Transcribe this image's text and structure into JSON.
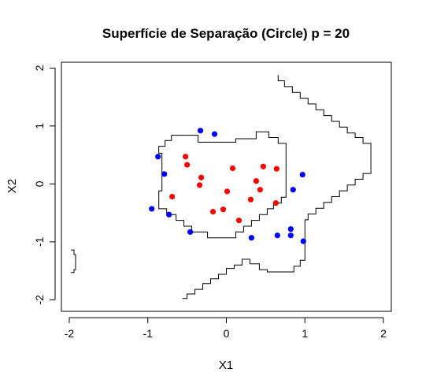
{
  "chart_data": {
    "type": "scatter",
    "title": "Superfície de Separação (Circle) p = 20",
    "xlabel": "X1",
    "ylabel": "X2",
    "xlim": [
      -2.1,
      2.1
    ],
    "ylim": [
      -2.2,
      2.1
    ],
    "xticks": [
      -2,
      -1,
      0,
      1,
      2
    ],
    "yticks": [
      -2,
      -1,
      0,
      1,
      2
    ],
    "tick_labels_x": [
      "-2",
      "-1",
      "0",
      "1",
      "2"
    ],
    "tick_labels_y": [
      "-2",
      "-1",
      "0",
      "1",
      "2"
    ],
    "grid": false,
    "colors": {
      "class_a": "#ff0000",
      "class_b": "#0000ff",
      "boundary": "#000000"
    },
    "series": [
      {
        "color": "#ff0000",
        "points": [
          [
            -0.52,
            0.47
          ],
          [
            -0.5,
            0.33
          ],
          [
            -0.32,
            0.11
          ],
          [
            -0.34,
            -0.02
          ],
          [
            -0.69,
            -0.22
          ],
          [
            0.08,
            0.27
          ],
          [
            0.01,
            -0.13
          ],
          [
            0.47,
            0.3
          ],
          [
            0.64,
            0.26
          ],
          [
            0.38,
            0.05
          ],
          [
            0.43,
            -0.1
          ],
          [
            0.31,
            -0.27
          ],
          [
            -0.17,
            -0.48
          ],
          [
            -0.04,
            -0.44
          ],
          [
            0.16,
            -0.63
          ],
          [
            0.63,
            -0.33
          ]
        ]
      },
      {
        "color": "#0000ff",
        "points": [
          [
            -0.33,
            0.92
          ],
          [
            -0.15,
            0.86
          ],
          [
            -0.87,
            0.47
          ],
          [
            -0.79,
            0.17
          ],
          [
            -0.95,
            -0.43
          ],
          [
            -0.73,
            -0.53
          ],
          [
            -0.46,
            -0.83
          ],
          [
            0.32,
            -0.93
          ],
          [
            0.85,
            -0.1
          ],
          [
            0.97,
            0.16
          ],
          [
            0.82,
            -0.78
          ],
          [
            0.82,
            -0.89
          ],
          [
            0.65,
            -0.89
          ],
          [
            0.98,
            -0.99
          ]
        ]
      }
    ],
    "boundary_lines": [
      [
        [
          0.66,
          1.88
        ],
        [
          0.66,
          1.78
        ],
        [
          0.74,
          1.78
        ],
        [
          0.74,
          1.68
        ],
        [
          0.84,
          1.68
        ],
        [
          0.84,
          1.58
        ],
        [
          0.94,
          1.58
        ],
        [
          0.94,
          1.48
        ],
        [
          1.04,
          1.48
        ],
        [
          1.04,
          1.38
        ],
        [
          1.14,
          1.38
        ],
        [
          1.14,
          1.28
        ],
        [
          1.24,
          1.28
        ],
        [
          1.24,
          1.18
        ],
        [
          1.34,
          1.18
        ],
        [
          1.34,
          1.08
        ],
        [
          1.44,
          1.08
        ],
        [
          1.44,
          0.98
        ],
        [
          1.54,
          0.98
        ],
        [
          1.54,
          0.88
        ],
        [
          1.64,
          0.88
        ],
        [
          1.64,
          0.8
        ],
        [
          1.74,
          0.8
        ],
        [
          1.74,
          0.7
        ],
        [
          1.84,
          0.7
        ],
        [
          1.84,
          0.18
        ],
        [
          1.74,
          0.18
        ],
        [
          1.74,
          0.08
        ],
        [
          1.64,
          0.08
        ],
        [
          1.64,
          -0.02
        ],
        [
          1.54,
          -0.02
        ],
        [
          1.54,
          -0.12
        ],
        [
          1.44,
          -0.12
        ],
        [
          1.44,
          -0.22
        ],
        [
          1.34,
          -0.22
        ],
        [
          1.34,
          -0.32
        ],
        [
          1.24,
          -0.32
        ],
        [
          1.24,
          -0.42
        ],
        [
          1.14,
          -0.42
        ],
        [
          1.14,
          -0.52
        ],
        [
          1.04,
          -0.52
        ],
        [
          1.04,
          -0.62
        ],
        [
          1.0,
          -0.62
        ],
        [
          1.0,
          -1.32
        ],
        [
          0.94,
          -1.32
        ],
        [
          0.94,
          -1.42
        ],
        [
          0.86,
          -1.42
        ],
        [
          0.86,
          -1.52
        ],
        [
          0.52,
          -1.52
        ],
        [
          0.52,
          -1.48
        ],
        [
          0.42,
          -1.48
        ],
        [
          0.42,
          -1.38
        ],
        [
          0.3,
          -1.38
        ],
        [
          0.3,
          -1.3
        ],
        [
          0.2,
          -1.3
        ],
        [
          0.2,
          -1.4
        ],
        [
          0.1,
          -1.4
        ],
        [
          0.1,
          -1.46
        ],
        [
          0.0,
          -1.46
        ],
        [
          0.0,
          -1.56
        ],
        [
          -0.1,
          -1.56
        ],
        [
          -0.1,
          -1.64
        ],
        [
          -0.2,
          -1.64
        ],
        [
          -0.2,
          -1.72
        ],
        [
          -0.3,
          -1.72
        ],
        [
          -0.3,
          -1.82
        ],
        [
          -0.4,
          -1.82
        ],
        [
          -0.4,
          -1.9
        ],
        [
          -0.5,
          -1.9
        ],
        [
          -0.5,
          -1.98
        ],
        [
          -0.56,
          -1.98
        ]
      ],
      [
        [
          -0.7,
          0.84
        ],
        [
          -0.7,
          0.75
        ],
        [
          -0.78,
          0.75
        ],
        [
          -0.78,
          0.65
        ],
        [
          -0.86,
          0.65
        ],
        [
          -0.86,
          0.53
        ],
        [
          -0.82,
          0.53
        ],
        [
          -0.82,
          -0.12
        ],
        [
          -0.86,
          -0.12
        ],
        [
          -0.86,
          -0.43
        ],
        [
          -0.76,
          -0.43
        ],
        [
          -0.76,
          -0.53
        ],
        [
          -0.64,
          -0.53
        ],
        [
          -0.64,
          -0.63
        ],
        [
          -0.54,
          -0.63
        ],
        [
          -0.54,
          -0.73
        ],
        [
          -0.44,
          -0.73
        ],
        [
          -0.44,
          -0.83
        ],
        [
          -0.24,
          -0.83
        ],
        [
          -0.24,
          -0.93
        ],
        [
          0.12,
          -0.93
        ],
        [
          0.12,
          -0.83
        ],
        [
          0.22,
          -0.83
        ],
        [
          0.22,
          -0.73
        ],
        [
          0.32,
          -0.73
        ],
        [
          0.32,
          -0.63
        ],
        [
          0.42,
          -0.63
        ],
        [
          0.42,
          -0.53
        ],
        [
          0.52,
          -0.53
        ],
        [
          0.52,
          -0.43
        ],
        [
          0.6,
          -0.43
        ],
        [
          0.6,
          -0.33
        ],
        [
          0.7,
          -0.33
        ],
        [
          0.7,
          -0.23
        ],
        [
          0.76,
          -0.23
        ],
        [
          0.76,
          0.7
        ],
        [
          0.66,
          0.7
        ],
        [
          0.66,
          0.8
        ],
        [
          0.54,
          0.8
        ],
        [
          0.54,
          0.9
        ],
        [
          0.38,
          0.9
        ],
        [
          0.38,
          0.78
        ],
        [
          0.12,
          0.78
        ],
        [
          0.12,
          0.72
        ],
        [
          -0.36,
          0.72
        ],
        [
          -0.36,
          0.84
        ],
        [
          -0.7,
          0.84
        ]
      ],
      [
        [
          -1.98,
          -1.14
        ],
        [
          -1.94,
          -1.14
        ],
        [
          -1.94,
          -1.22
        ],
        [
          -1.92,
          -1.22
        ],
        [
          -1.92,
          -1.48
        ],
        [
          -1.94,
          -1.48
        ],
        [
          -1.94,
          -1.53
        ],
        [
          -1.98,
          -1.53
        ]
      ]
    ]
  }
}
